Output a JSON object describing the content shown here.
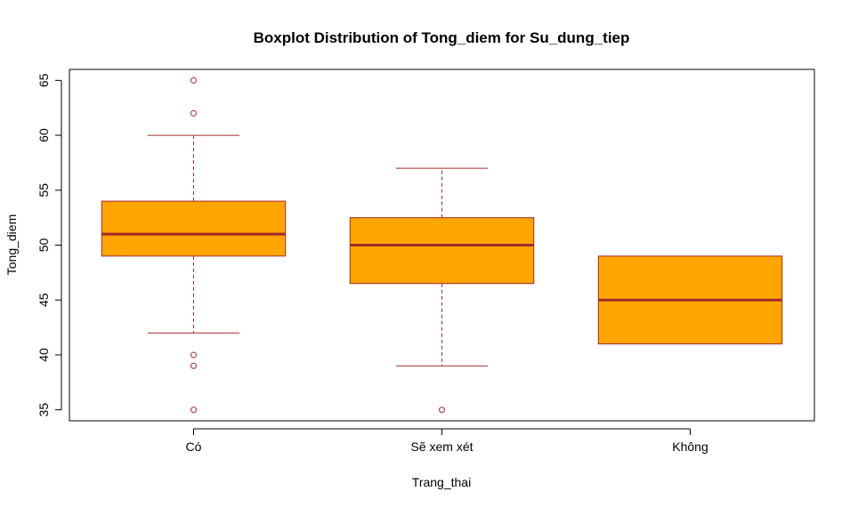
{
  "chart_data": {
    "type": "boxplot",
    "title": "Boxplot Distribution of Tong_diem for Su_dung_tiep",
    "xlabel": "Trang_thai",
    "ylabel": "Tong_diem",
    "ylim": [
      34,
      66
    ],
    "yticks": [
      35,
      40,
      45,
      50,
      55,
      60,
      65
    ],
    "grid": false,
    "legend": "none",
    "colors": {
      "box_fill": "#FFA500",
      "line": "#A52A2A",
      "axis": "#000000"
    },
    "categories": [
      "Có",
      "Sẽ xem xét",
      "Không"
    ],
    "boxes": [
      {
        "category": "Có",
        "whisker_low": 42,
        "q1": 49,
        "median": 51,
        "q3": 54,
        "whisker_high": 60,
        "outliers": [
          65,
          62,
          40,
          39,
          35
        ]
      },
      {
        "category": "Sẽ xem xét",
        "whisker_low": 39,
        "q1": 46.5,
        "median": 50,
        "q3": 52.5,
        "whisker_high": 57,
        "outliers": [
          35
        ]
      },
      {
        "category": "Không",
        "whisker_low": 41,
        "q1": 41,
        "median": 45,
        "q3": 49,
        "whisker_high": 49,
        "outliers": []
      }
    ]
  }
}
